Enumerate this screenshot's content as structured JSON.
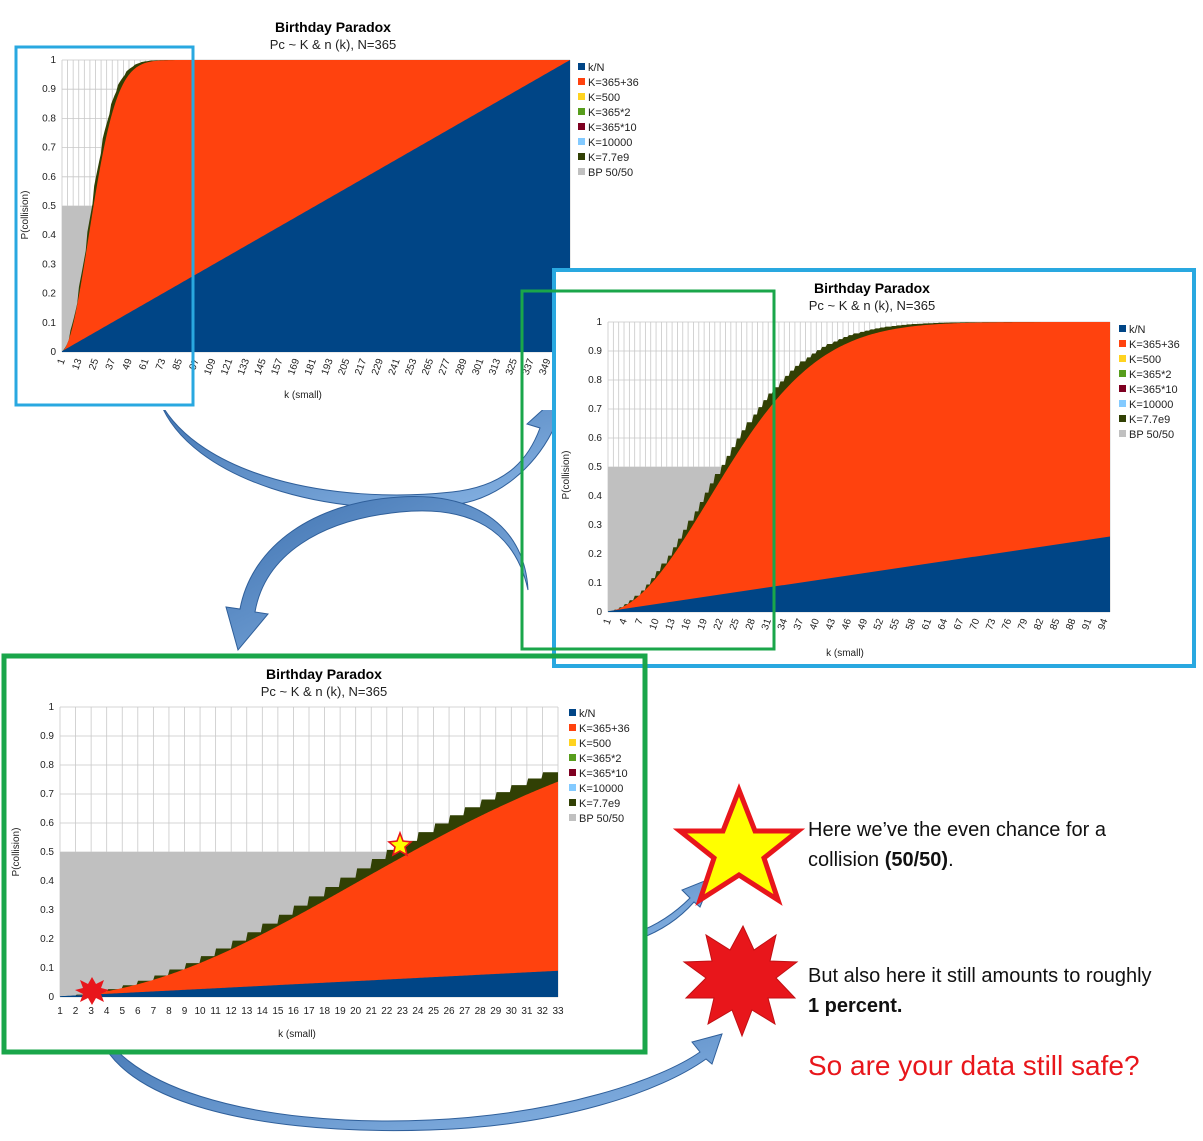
{
  "chart_data": [
    {
      "type": "area",
      "title": "Birthday Paradox",
      "subtitle": "Pc ~ K & n (k), N=365",
      "xlabel": "k (small)",
      "ylabel": "P(collision)",
      "xlim": [
        1,
        365
      ],
      "ylim": [
        0,
        1
      ],
      "x_tick_labels": [
        "1",
        "13",
        "25",
        "37",
        "49",
        "61",
        "73",
        "85",
        "97",
        "109",
        "121",
        "133",
        "145",
        "157",
        "169",
        "181",
        "193",
        "205",
        "217",
        "229",
        "241",
        "253",
        "265",
        "277",
        "289",
        "301",
        "313",
        "325",
        "337",
        "349"
      ],
      "y_tick_labels": [
        "0",
        "0.1",
        "0.2",
        "0.3",
        "0.4",
        "0.5",
        "0.6",
        "0.7",
        "0.8",
        "0.9",
        "1"
      ],
      "series": [
        {
          "name": "k/N",
          "color": "#004586",
          "formula": "k/N"
        },
        {
          "name": "K=365+36",
          "color": "#ff420e",
          "formula": "1-exp(-k^2/(2K))",
          "K": 401
        },
        {
          "name": "K=500",
          "color": "#ffd320",
          "formula": "1-exp(-k^2/(2K))",
          "K": 500
        },
        {
          "name": "K=365*2",
          "color": "#579d1c",
          "formula": "1-exp(-k^2/(2K))",
          "K": 730
        },
        {
          "name": "K=365*10",
          "color": "#7e0021",
          "formula": "1-exp(-k^2/(2K))",
          "K": 3650
        },
        {
          "name": "K=10000",
          "color": "#83caff",
          "formula": "1-exp(-k^2/(2K))",
          "K": 10000
        },
        {
          "name": "K=7.7e9",
          "color": "#314004",
          "formula": "birthday",
          "K": 7700000000
        },
        {
          "name": "BP 50/50",
          "color": "#c0c0c0",
          "formula": "0.5 for k<=23"
        }
      ]
    },
    {
      "type": "area",
      "title": "Birthday Paradox",
      "subtitle": "Pc ~ K & n (k), N=365",
      "xlabel": "k (small)",
      "ylabel": "P(collision)",
      "xlim": [
        1,
        95
      ],
      "ylim": [
        0,
        1
      ],
      "x_tick_labels": [
        "1",
        "4",
        "7",
        "10",
        "13",
        "16",
        "19",
        "22",
        "25",
        "28",
        "31",
        "34",
        "37",
        "40",
        "43",
        "46",
        "49",
        "52",
        "55",
        "58",
        "61",
        "64",
        "67",
        "70",
        "73",
        "76",
        "79",
        "82",
        "85",
        "88",
        "91",
        "94"
      ],
      "y_tick_labels": [
        "0",
        "0.1",
        "0.2",
        "0.3",
        "0.4",
        "0.5",
        "0.6",
        "0.7",
        "0.8",
        "0.9",
        "1"
      ],
      "series_ref": "same as chart 1"
    },
    {
      "type": "area",
      "title": "Birthday Paradox",
      "subtitle": "Pc ~ K & n (k), N=365",
      "xlabel": "k (small)",
      "ylabel": "P(collision)",
      "xlim": [
        1,
        33
      ],
      "ylim": [
        0,
        1
      ],
      "x_tick_labels": [
        "1",
        "2",
        "3",
        "4",
        "5",
        "6",
        "7",
        "8",
        "9",
        "10",
        "11",
        "12",
        "13",
        "14",
        "15",
        "16",
        "17",
        "18",
        "19",
        "20",
        "21",
        "22",
        "23",
        "24",
        "25",
        "26",
        "27",
        "28",
        "29",
        "30",
        "31",
        "32",
        "33"
      ],
      "y_tick_labels": [
        "0",
        "0.1",
        "0.2",
        "0.3",
        "0.4",
        "0.5",
        "0.6",
        "0.7",
        "0.8",
        "0.9",
        "1"
      ],
      "series_ref": "same as chart 1"
    }
  ],
  "notes": {
    "n1_pre": "Here we’ve the even chance for a collision ",
    "n1_bold": "(50/50)",
    "n1_post": ".",
    "n2_pre": "But also here it still amounts to roughly ",
    "n2_bold": "1 percent.",
    "n3": "So are your data still safe?"
  },
  "colors": {
    "blue_frame": "#29a8e0",
    "green_frame": "#1aa64a",
    "arrow": "#4a84c4",
    "star_fill": "#ffff00",
    "star_stroke": "#e8161b",
    "burst_fill": "#e8161b"
  }
}
